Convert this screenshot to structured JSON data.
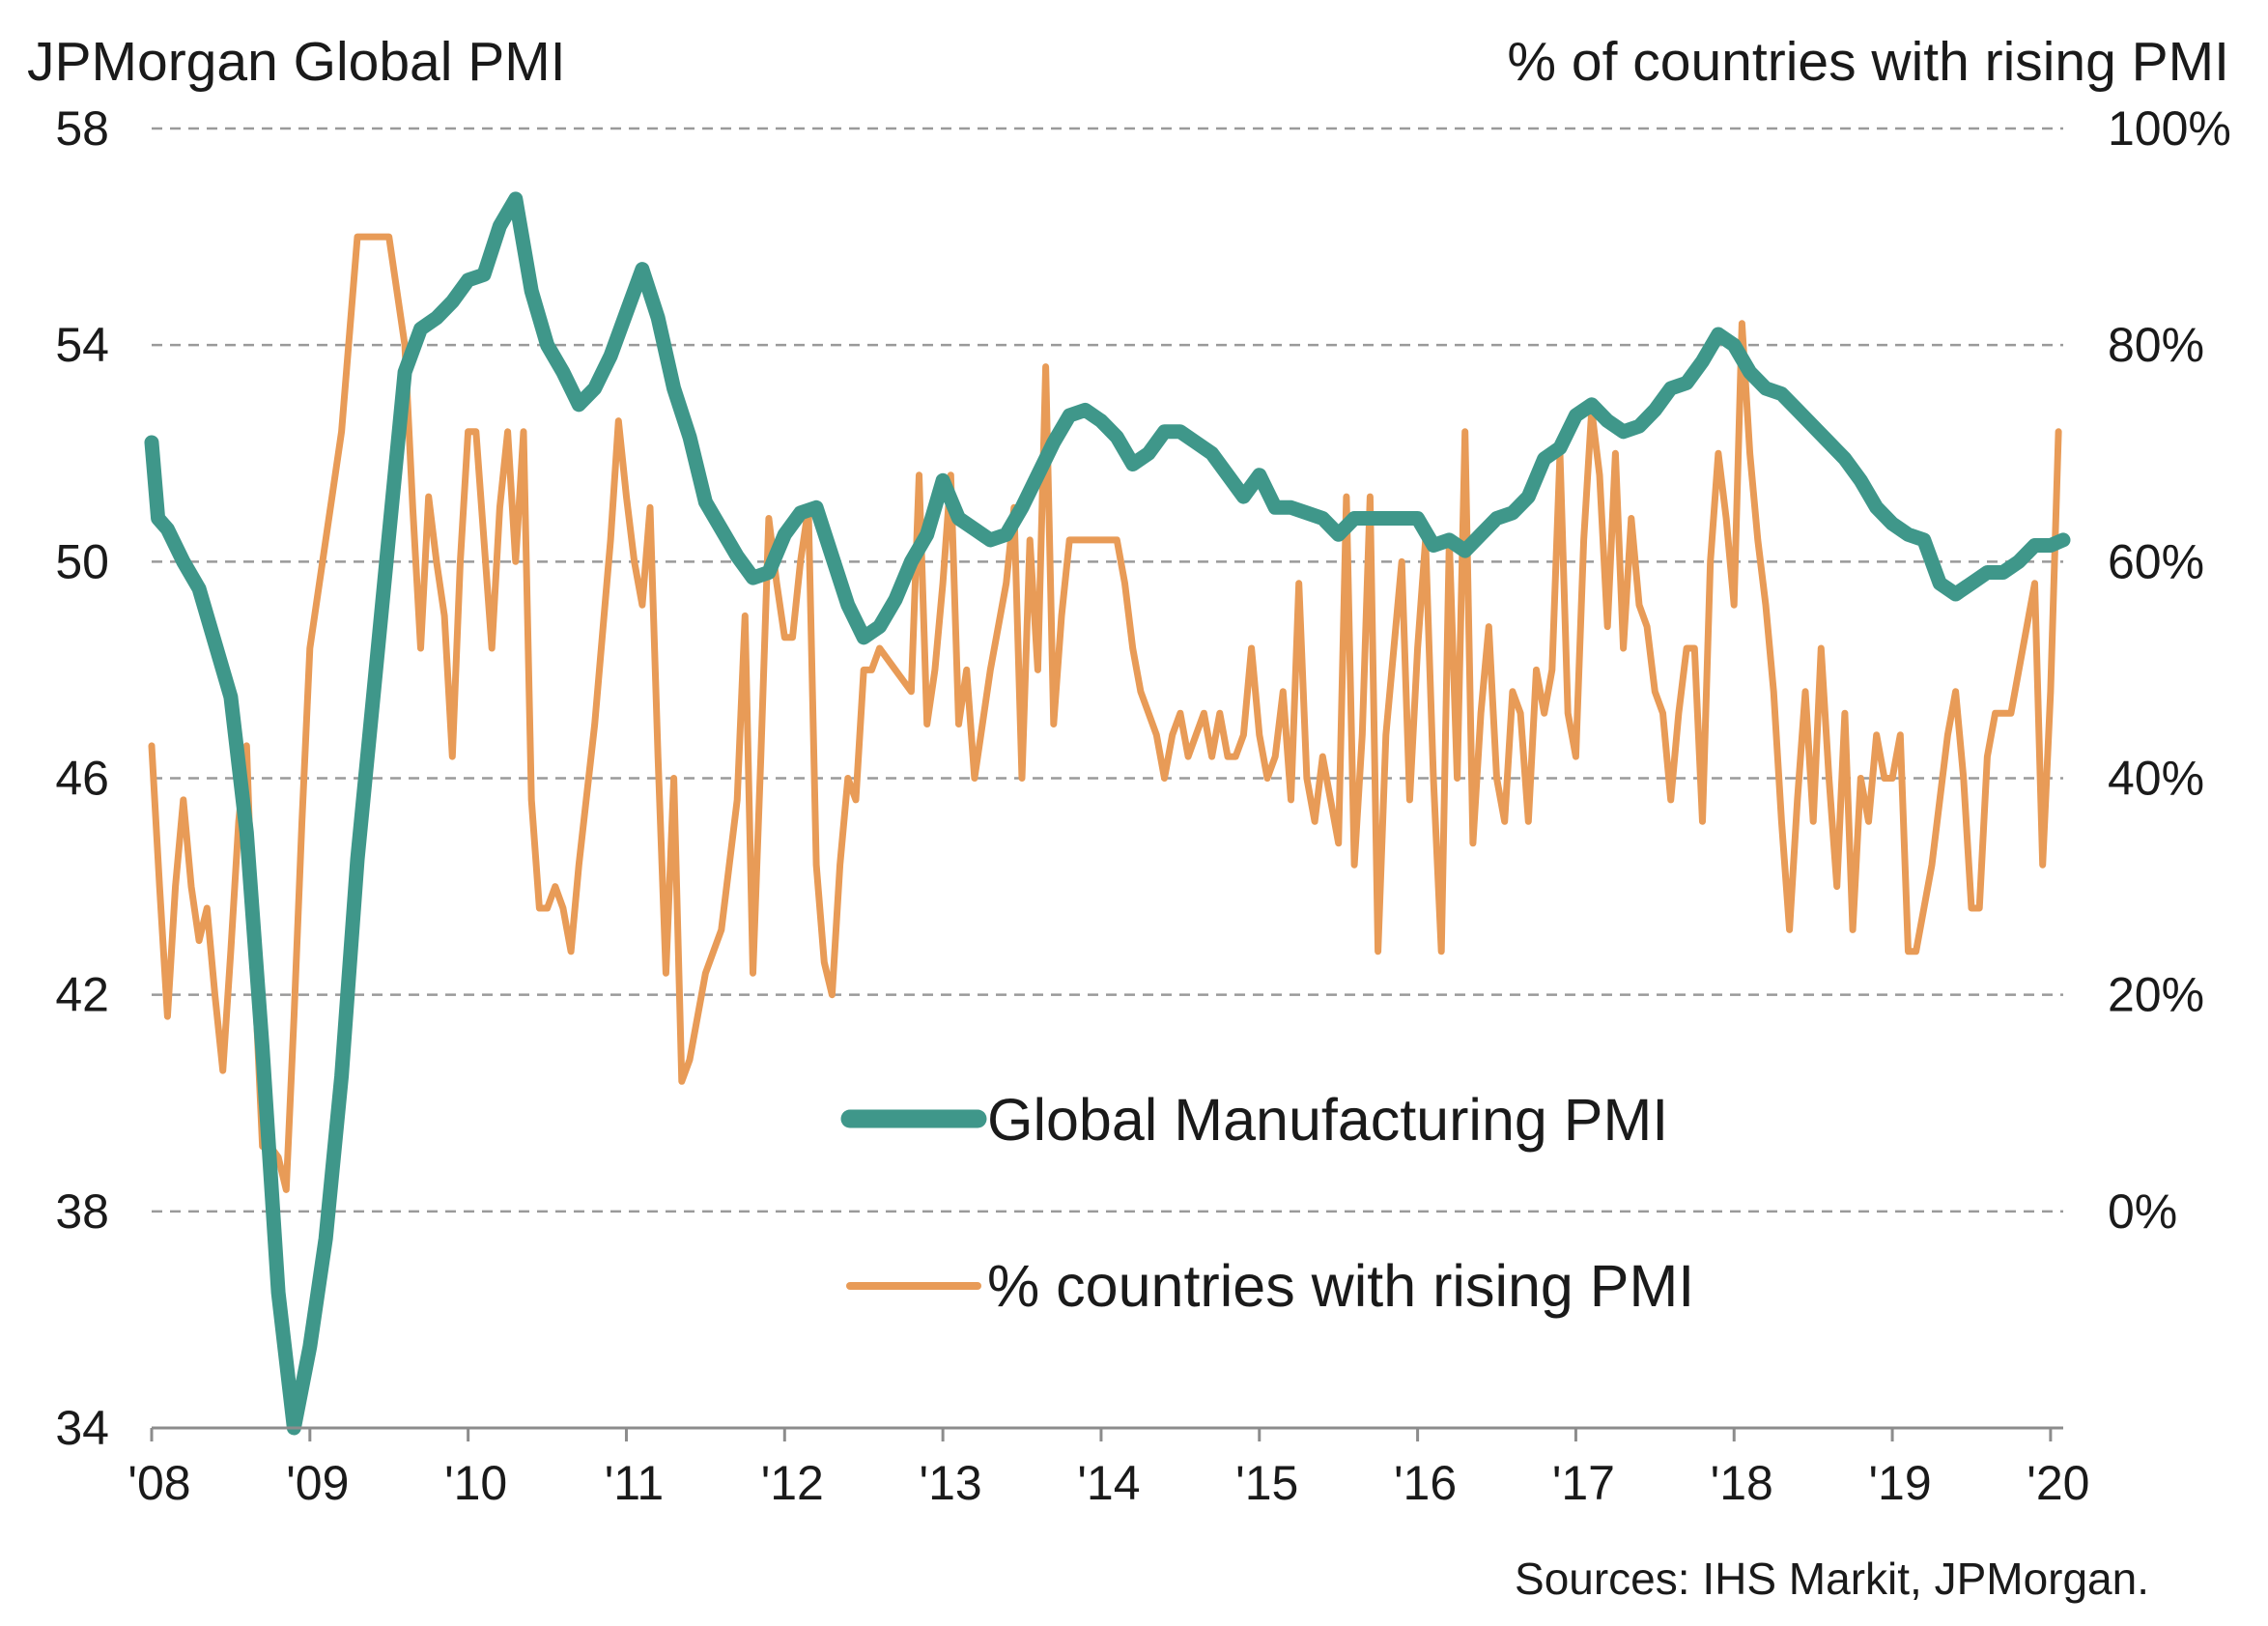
{
  "chart_data": {
    "type": "line",
    "title": "",
    "ylabel_left": "JPMorgan Global PMI",
    "ylabel_right": "% of countries with rising PMI",
    "xlabel": "",
    "x_tick_labels": [
      "'08",
      "'09",
      "'10",
      "'11",
      "'12",
      "'13",
      "'14",
      "'15",
      "'16",
      "'17",
      "'18",
      "'19",
      "'20"
    ],
    "x_tick_years": [
      2008,
      2009,
      2010,
      2011,
      2012,
      2013,
      2014,
      2015,
      2016,
      2017,
      2018,
      2019,
      2020
    ],
    "xlim": [
      2008.0,
      2020.08
    ],
    "y_left": {
      "lim": [
        34,
        58
      ],
      "ticks": [
        34,
        38,
        42,
        46,
        50,
        54,
        58
      ],
      "tick_labels": [
        "34",
        "38",
        "42",
        "46",
        "50",
        "54",
        "58"
      ]
    },
    "y_right": {
      "lim": [
        -20,
        100
      ],
      "ticks": [
        0,
        20,
        40,
        60,
        80,
        100
      ],
      "tick_labels": [
        "0%",
        "20%",
        "40%",
        "60%",
        "80%",
        "100%"
      ]
    },
    "grid": "horizontal dashed",
    "legend": "center",
    "series": [
      {
        "name": "Global Manufacturing PMI",
        "axis": "left",
        "color": "#3f978a",
        "x": [
          2008.0,
          2008.04,
          2008.1,
          2008.2,
          2008.3,
          2008.4,
          2008.5,
          2008.6,
          2008.7,
          2008.8,
          2008.9,
          2009.0,
          2009.1,
          2009.2,
          2009.3,
          2009.4,
          2009.5,
          2009.6,
          2009.7,
          2009.8,
          2009.9,
          2010.0,
          2010.1,
          2010.2,
          2010.3,
          2010.4,
          2010.5,
          2010.6,
          2010.7,
          2010.8,
          2010.9,
          2011.0,
          2011.1,
          2011.2,
          2011.3,
          2011.4,
          2011.5,
          2011.6,
          2011.7,
          2011.8,
          2011.9,
          2012.0,
          2012.1,
          2012.2,
          2012.3,
          2012.4,
          2012.5,
          2012.6,
          2012.7,
          2012.8,
          2012.9,
          2013.0,
          2013.1,
          2013.2,
          2013.3,
          2013.4,
          2013.5,
          2013.6,
          2013.7,
          2013.8,
          2013.9,
          2014.0,
          2014.1,
          2014.2,
          2014.3,
          2014.4,
          2014.5,
          2014.6,
          2014.7,
          2014.8,
          2014.9,
          2015.0,
          2015.1,
          2015.2,
          2015.3,
          2015.4,
          2015.5,
          2015.6,
          2015.7,
          2015.8,
          2015.9,
          2016.0,
          2016.1,
          2016.2,
          2016.3,
          2016.4,
          2016.5,
          2016.6,
          2016.7,
          2016.8,
          2016.9,
          2017.0,
          2017.1,
          2017.2,
          2017.3,
          2017.4,
          2017.5,
          2017.6,
          2017.7,
          2017.8,
          2017.9,
          2018.0,
          2018.1,
          2018.2,
          2018.3,
          2018.4,
          2018.5,
          2018.6,
          2018.7,
          2018.8,
          2018.9,
          2019.0,
          2019.1,
          2019.2,
          2019.3,
          2019.4,
          2019.5,
          2019.6,
          2019.7,
          2019.8,
          2019.9,
          2020.0,
          2020.08
        ],
        "y": [
          52.2,
          50.8,
          50.6,
          50.0,
          49.5,
          48.5,
          47.5,
          45.0,
          41.0,
          36.5,
          34.0,
          35.5,
          37.5,
          40.5,
          44.5,
          47.5,
          50.5,
          53.5,
          54.3,
          54.5,
          54.8,
          55.2,
          55.3,
          56.2,
          56.7,
          55.0,
          54.0,
          53.5,
          52.9,
          53.2,
          53.8,
          54.6,
          55.4,
          54.5,
          53.2,
          52.3,
          51.1,
          50.6,
          50.1,
          49.7,
          49.8,
          50.5,
          50.9,
          51.0,
          50.1,
          49.2,
          48.6,
          48.8,
          49.3,
          50.0,
          50.5,
          51.5,
          50.8,
          50.6,
          50.4,
          50.5,
          51.0,
          51.6,
          52.2,
          52.7,
          52.8,
          52.6,
          52.3,
          51.8,
          52.0,
          52.4,
          52.4,
          52.2,
          52.0,
          51.6,
          51.2,
          51.6,
          51.0,
          51.0,
          50.9,
          50.8,
          50.5,
          50.8,
          50.8,
          50.8,
          50.8,
          50.8,
          50.3,
          50.4,
          50.2,
          50.5,
          50.8,
          50.9,
          51.2,
          51.9,
          52.1,
          52.7,
          52.9,
          52.6,
          52.4,
          52.5,
          52.8,
          53.2,
          53.3,
          53.7,
          54.2,
          54.0,
          53.5,
          53.2,
          53.1,
          52.8,
          52.5,
          52.2,
          51.9,
          51.5,
          51.0,
          50.7,
          50.5,
          50.4,
          49.6,
          49.4,
          49.6,
          49.8,
          49.8,
          50.0,
          50.3,
          50.3,
          50.4
        ]
      },
      {
        "name": "% countries with rising PMI",
        "axis": "right",
        "color": "#e89b57",
        "x": [
          2008.0,
          2008.05,
          2008.1,
          2008.15,
          2008.2,
          2008.25,
          2008.3,
          2008.35,
          2008.4,
          2008.45,
          2008.5,
          2008.55,
          2008.6,
          2008.65,
          2008.7,
          2008.75,
          2008.8,
          2008.85,
          2008.9,
          2008.95,
          2009.0,
          2009.1,
          2009.2,
          2009.3,
          2009.4,
          2009.5,
          2009.6,
          2009.65,
          2009.7,
          2009.75,
          2009.8,
          2009.85,
          2009.9,
          2009.95,
          2010.0,
          2010.05,
          2010.1,
          2010.15,
          2010.2,
          2010.25,
          2010.3,
          2010.35,
          2010.4,
          2010.45,
          2010.5,
          2010.55,
          2010.6,
          2010.65,
          2010.7,
          2010.8,
          2010.9,
          2010.95,
          2011.0,
          2011.05,
          2011.1,
          2011.15,
          2011.2,
          2011.25,
          2011.3,
          2011.35,
          2011.4,
          2011.45,
          2011.5,
          2011.55,
          2011.6,
          2011.65,
          2011.7,
          2011.75,
          2011.8,
          2011.85,
          2011.9,
          2011.95,
          2012.0,
          2012.05,
          2012.1,
          2012.15,
          2012.2,
          2012.25,
          2012.3,
          2012.35,
          2012.4,
          2012.45,
          2012.5,
          2012.55,
          2012.6,
          2012.7,
          2012.8,
          2012.85,
          2012.9,
          2012.95,
          2013.0,
          2013.05,
          2013.1,
          2013.15,
          2013.2,
          2013.3,
          2013.4,
          2013.45,
          2013.5,
          2013.55,
          2013.6,
          2013.65,
          2013.7,
          2013.75,
          2013.8,
          2013.9,
          2014.0,
          2014.05,
          2014.1,
          2014.15,
          2014.2,
          2014.25,
          2014.3,
          2014.35,
          2014.4,
          2014.45,
          2014.5,
          2014.55,
          2014.6,
          2014.65,
          2014.7,
          2014.75,
          2014.8,
          2014.85,
          2014.9,
          2014.95,
          2015.0,
          2015.05,
          2015.1,
          2015.15,
          2015.2,
          2015.25,
          2015.3,
          2015.35,
          2015.4,
          2015.45,
          2015.5,
          2015.55,
          2015.6,
          2015.65,
          2015.7,
          2015.75,
          2015.8,
          2015.85,
          2015.9,
          2015.95,
          2016.0,
          2016.05,
          2016.1,
          2016.15,
          2016.2,
          2016.25,
          2016.3,
          2016.35,
          2016.4,
          2016.45,
          2016.5,
          2016.55,
          2016.6,
          2016.65,
          2016.7,
          2016.75,
          2016.8,
          2016.85,
          2016.9,
          2016.95,
          2017.0,
          2017.05,
          2017.1,
          2017.15,
          2017.2,
          2017.25,
          2017.3,
          2017.35,
          2017.4,
          2017.45,
          2017.5,
          2017.55,
          2017.6,
          2017.65,
          2017.7,
          2017.75,
          2017.8,
          2017.85,
          2017.9,
          2017.95,
          2018.0,
          2018.05,
          2018.1,
          2018.15,
          2018.2,
          2018.25,
          2018.3,
          2018.35,
          2018.4,
          2018.45,
          2018.5,
          2018.55,
          2018.6,
          2018.65,
          2018.7,
          2018.75,
          2018.8,
          2018.85,
          2018.9,
          2018.95,
          2019.0,
          2019.05,
          2019.1,
          2019.15,
          2019.2,
          2019.25,
          2019.3,
          2019.35,
          2019.4,
          2019.45,
          2019.5,
          2019.55,
          2019.6,
          2019.65,
          2019.7,
          2019.75,
          2019.8,
          2019.85,
          2019.9,
          2019.95,
          2020.0,
          2020.05
        ],
        "y": [
          43,
          30,
          18,
          30,
          38,
          30,
          25,
          28,
          20,
          13,
          24,
          36,
          43,
          22,
          6,
          6,
          5,
          2,
          18,
          36,
          52,
          62,
          72,
          90,
          90,
          90,
          80,
          65,
          52,
          66,
          60,
          55,
          42,
          60,
          72,
          72,
          62,
          52,
          65,
          72,
          60,
          72,
          38,
          28,
          28,
          30,
          28,
          24,
          32,
          45,
          62,
          73,
          66,
          60,
          56,
          65,
          42,
          22,
          40,
          12,
          14,
          18,
          22,
          24,
          26,
          32,
          38,
          55,
          22,
          42,
          64,
          58,
          53,
          53,
          60,
          65,
          32,
          23,
          20,
          32,
          40,
          38,
          50,
          50,
          52,
          50,
          48,
          68,
          45,
          50,
          58,
          68,
          45,
          50,
          40,
          50,
          58,
          65,
          40,
          62,
          50,
          78,
          45,
          55,
          62,
          62,
          62,
          62,
          62,
          58,
          52,
          48,
          46,
          44,
          40,
          44,
          46,
          42,
          44,
          46,
          42,
          46,
          42,
          42,
          44,
          52,
          44,
          40,
          42,
          48,
          38,
          58,
          40,
          36,
          42,
          38,
          34,
          66,
          32,
          44,
          66,
          24,
          44,
          52,
          60,
          38,
          52,
          62,
          40,
          24,
          62,
          40,
          72,
          34,
          46,
          54,
          40,
          36,
          48,
          46,
          36,
          50,
          46,
          50,
          70,
          46,
          42,
          62,
          74,
          68,
          54,
          70,
          52,
          64,
          56,
          54,
          48,
          46,
          38,
          46,
          52,
          52,
          36,
          60,
          70,
          64,
          56,
          82,
          70,
          62,
          56,
          48,
          36,
          26,
          38,
          48,
          36,
          52,
          40,
          30,
          46,
          26,
          40,
          36,
          44,
          40,
          40,
          44,
          24,
          24,
          28,
          32,
          38,
          44,
          48,
          40,
          28,
          28,
          42,
          46,
          46,
          46,
          50,
          54,
          58,
          32,
          48,
          72
        ]
      }
    ]
  },
  "legend": {
    "items": [
      {
        "label": "Global Manufacturing PMI",
        "color": "#3f978a"
      },
      {
        "label": "% countries with rising PMI",
        "color": "#e89b57"
      }
    ]
  },
  "source_note": "Sources: IHS Markit, JPMorgan."
}
